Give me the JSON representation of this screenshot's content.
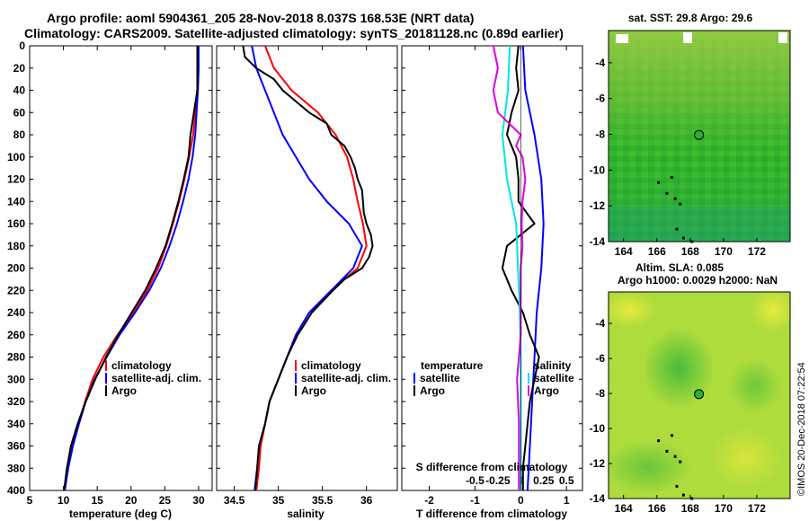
{
  "header": {
    "line1": "Argo profile: aoml 5904361_205 28-Nov-2018 8.037S 168.53E (NRT data)",
    "line2": "Climatology: CARS2009. Satellite-adjusted climatology: synTS_20181128.nc (0.89d earlier)"
  },
  "credit": "©IMOS 20-Dec-2018 07:22:54",
  "colors": {
    "climatology": "#ff0000",
    "satellite": "#0000ff",
    "argo": "#000000",
    "cyan": "#00e5e5",
    "magenta": "#e000e0"
  },
  "chart_data": [
    {
      "type": "line",
      "name": "temperature",
      "xlabel": "temperature (deg C)",
      "xlim": [
        5,
        32
      ],
      "xticks": [
        "5",
        "10",
        "15",
        "20",
        "25",
        "30"
      ],
      "xtick_values": [
        5,
        10,
        15,
        20,
        25,
        30
      ],
      "ylim": [
        0,
        400
      ],
      "yticks": [
        "0",
        "20",
        "40",
        "60",
        "80",
        "100",
        "120",
        "140",
        "160",
        "180",
        "200",
        "220",
        "240",
        "260",
        "280",
        "300",
        "320",
        "340",
        "360",
        "380",
        "400"
      ],
      "ytick_values": [
        0,
        20,
        40,
        60,
        80,
        100,
        120,
        140,
        160,
        180,
        200,
        220,
        240,
        260,
        280,
        300,
        320,
        340,
        360,
        380,
        400
      ],
      "legend": [
        "climatology",
        "satellite-adj. clim.",
        "Argo"
      ],
      "series": [
        {
          "name": "climatology",
          "color": "red",
          "depth": [
            0,
            20,
            40,
            60,
            80,
            100,
            120,
            140,
            160,
            180,
            200,
            220,
            240,
            260,
            280,
            300,
            320,
            340,
            360,
            380,
            400
          ],
          "values": [
            29.9,
            29.9,
            29.8,
            29.5,
            29.2,
            28.6,
            27.9,
            27.1,
            26.2,
            25.2,
            24.0,
            22.4,
            20.4,
            18.0,
            15.9,
            14.3,
            13.2,
            12.2,
            11.3,
            10.6,
            10.1
          ]
        },
        {
          "name": "satellite-adj. clim.",
          "color": "blue",
          "depth": [
            0,
            20,
            40,
            60,
            80,
            100,
            120,
            140,
            160,
            180,
            200,
            220,
            240,
            260,
            280,
            300,
            320,
            340,
            360,
            380,
            400
          ],
          "values": [
            30.0,
            30.0,
            29.9,
            29.7,
            29.5,
            29.1,
            28.5,
            27.7,
            26.8,
            25.7,
            24.4,
            22.7,
            20.6,
            18.3,
            16.4,
            14.6,
            13.3,
            12.3,
            11.4,
            10.7,
            10.2
          ]
        },
        {
          "name": "Argo",
          "color": "black",
          "depth": [
            0,
            20,
            40,
            60,
            80,
            100,
            120,
            140,
            160,
            180,
            200,
            220,
            240,
            260,
            280,
            300,
            320,
            340,
            360,
            380,
            400
          ],
          "values": [
            29.8,
            29.8,
            29.8,
            29.3,
            28.8,
            28.5,
            27.8,
            27.0,
            26.1,
            25.1,
            23.7,
            22.1,
            20.1,
            18.1,
            16.3,
            14.7,
            13.3,
            12.1,
            11.1,
            10.5,
            10.1
          ]
        }
      ]
    },
    {
      "type": "line",
      "name": "salinity",
      "xlabel": "salinity",
      "xlim": [
        34.3,
        36.35
      ],
      "xticks": [
        "34.5",
        "35",
        "35.5",
        "36"
      ],
      "xtick_values": [
        34.5,
        35,
        35.5,
        36
      ],
      "ylim": [
        0,
        400
      ],
      "legend": [
        "climatology",
        "satellite-adj. clim.",
        "Argo"
      ],
      "series": [
        {
          "name": "climatology",
          "color": "red",
          "depth": [
            0,
            20,
            40,
            60,
            80,
            100,
            120,
            140,
            160,
            180,
            200,
            220,
            240,
            260,
            280,
            300,
            320,
            340,
            360,
            380,
            400
          ],
          "values": [
            34.85,
            34.95,
            35.15,
            35.45,
            35.65,
            35.78,
            35.85,
            35.9,
            35.96,
            36.0,
            35.9,
            35.6,
            35.35,
            35.2,
            35.1,
            35.0,
            34.9,
            34.85,
            34.8,
            34.78,
            34.75
          ]
        },
        {
          "name": "satellite-adj. clim.",
          "color": "blue",
          "depth": [
            0,
            20,
            40,
            60,
            80,
            100,
            120,
            140,
            160,
            180,
            200,
            220,
            240,
            260,
            280,
            300,
            320,
            340,
            360,
            380,
            400
          ],
          "values": [
            34.7,
            34.75,
            34.85,
            34.95,
            35.05,
            35.2,
            35.35,
            35.55,
            35.8,
            35.95,
            35.85,
            35.6,
            35.35,
            35.2,
            35.1,
            35.0,
            34.9,
            34.85,
            34.78,
            34.76,
            34.73
          ]
        },
        {
          "name": "Argo",
          "color": "black",
          "depth": [
            0,
            10,
            20,
            30,
            40,
            50,
            60,
            70,
            80,
            90,
            100,
            110,
            120,
            130,
            140,
            150,
            160,
            170,
            180,
            190,
            200,
            210,
            220,
            240,
            260,
            280,
            300,
            320,
            340,
            360,
            380,
            400
          ],
          "values": [
            34.6,
            34.62,
            34.75,
            34.95,
            35.05,
            35.2,
            35.35,
            35.55,
            35.6,
            35.75,
            35.82,
            35.87,
            35.9,
            35.95,
            35.96,
            35.97,
            36.0,
            36.05,
            36.07,
            36.03,
            35.95,
            35.75,
            35.62,
            35.38,
            35.22,
            35.1,
            35.0,
            34.9,
            34.85,
            34.78,
            34.76,
            34.74
          ]
        }
      ]
    },
    {
      "type": "line",
      "name": "difference",
      "xlabel": "T difference from climatology",
      "top_xlabel": "S difference from climatology",
      "xlim": [
        -2.6,
        1.35
      ],
      "xticks": [
        "-2",
        "-1",
        "0",
        "1"
      ],
      "xtick_values": [
        -2,
        -1,
        0,
        1
      ],
      "top_xticks": [
        "-0.5",
        "-0.25",
        "0",
        "0.25",
        "0.5"
      ],
      "top_xtick_values": [
        -0.5,
        -0.25,
        0,
        0.25,
        0.5
      ],
      "ylim": [
        0,
        400
      ],
      "legend_left_title": "temperature",
      "legend_right_title": "salinity",
      "legend_left": [
        "satellite",
        "Argo"
      ],
      "legend_right": [
        "satellite",
        "Argo"
      ],
      "series": [
        {
          "name": "T satellite",
          "color": "blue",
          "depth": [
            0,
            40,
            80,
            120,
            160,
            200,
            240,
            280,
            320,
            360,
            400
          ],
          "values": [
            0.05,
            0.1,
            0.3,
            0.45,
            0.5,
            0.45,
            0.35,
            0.3,
            0.25,
            0.2,
            0.15
          ]
        },
        {
          "name": "T Argo",
          "color": "black",
          "depth": [
            0,
            20,
            40,
            60,
            80,
            100,
            120,
            140,
            160,
            180,
            200,
            220,
            240,
            260,
            280,
            300,
            320,
            340,
            360,
            380,
            400
          ],
          "values": [
            -0.05,
            -0.1,
            -0.05,
            -0.2,
            -0.3,
            -0.1,
            -0.05,
            -0.05,
            0.3,
            -0.3,
            -0.4,
            -0.2,
            0.05,
            0.2,
            0.4,
            0.3,
            0.2,
            0.15,
            0.1,
            0.05,
            0.05
          ]
        },
        {
          "name": "S satellite",
          "color": "cyan",
          "depth": [
            0,
            40,
            80,
            120,
            160,
            200,
            240,
            280,
            320,
            360,
            400
          ],
          "values": [
            -0.12,
            -0.14,
            -0.2,
            -0.15,
            -0.05,
            -0.03,
            -0.01,
            0.0,
            0.0,
            0.0,
            0.0
          ]
        },
        {
          "name": "S Argo",
          "color": "magenta",
          "depth": [
            0,
            20,
            40,
            60,
            80,
            90,
            100,
            120,
            140,
            160,
            180,
            200,
            220,
            240,
            260,
            280,
            300,
            320,
            340,
            360,
            380,
            400
          ],
          "values": [
            -0.3,
            -0.25,
            -0.3,
            -0.25,
            0.0,
            -0.05,
            0.02,
            0.05,
            0.02,
            0.01,
            0.02,
            0.0,
            0.0,
            0.0,
            0.0,
            -0.02,
            -0.04,
            -0.03,
            -0.02,
            -0.02,
            -0.02,
            -0.02
          ]
        }
      ]
    },
    {
      "type": "heatmap",
      "name": "sst-map",
      "title": "sat. SST: 29.8 Argo: 29.6",
      "xticks": [
        "164",
        "166",
        "168",
        "170",
        "172"
      ],
      "xtick_values": [
        164,
        166,
        168,
        170,
        172
      ],
      "yticks": [
        "-4",
        "-6",
        "-8",
        "-10",
        "-12",
        "-14"
      ],
      "ytick_values": [
        -4,
        -6,
        -8,
        -10,
        -12,
        -14
      ],
      "xlim": [
        163.1,
        174
      ],
      "ylim": [
        -14,
        -2.2
      ],
      "argo_position": [
        168.53,
        -8.037
      ]
    },
    {
      "type": "heatmap",
      "name": "sla-map",
      "title1": "Altim. SLA: 0.085",
      "title2": "Argo h1000: 0.0029 h2000: NaN",
      "xticks": [
        "164",
        "166",
        "168",
        "170",
        "172"
      ],
      "xtick_values": [
        164,
        166,
        168,
        170,
        172
      ],
      "yticks": [
        "-4",
        "-6",
        "-8",
        "-10",
        "-12",
        "-14"
      ],
      "ytick_values": [
        -4,
        -6,
        -8,
        -10,
        -12,
        -14
      ],
      "xlim": [
        163.1,
        174
      ],
      "ylim": [
        -14,
        -2.2
      ],
      "argo_position": [
        168.53,
        -8.037
      ]
    }
  ]
}
